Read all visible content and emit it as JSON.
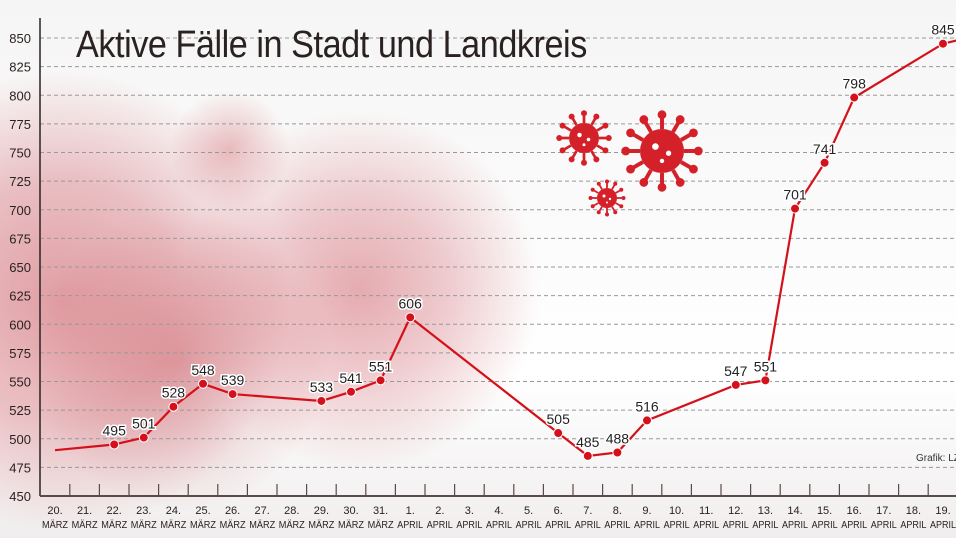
{
  "title": "Aktive Fälle in Stadt und Landkreis",
  "credit": "Grafik: LZ",
  "colors": {
    "line": "#d4111b",
    "axis": "#2a2220",
    "grid": "#999999",
    "virus": "#d42029"
  },
  "decorations": [
    "virus-background-image",
    "virus-icon-large",
    "virus-icon-medium",
    "virus-icon-small"
  ],
  "chart_data": {
    "type": "line",
    "title": "Aktive Fälle in Stadt und Landkreis",
    "xlabel": "",
    "ylabel": "",
    "ylim": [
      450,
      850
    ],
    "yticks": [
      450,
      475,
      500,
      525,
      550,
      575,
      600,
      625,
      650,
      675,
      700,
      725,
      750,
      775,
      800,
      825,
      850
    ],
    "grid": "horizontal dashed",
    "categories": [
      {
        "day": "20.",
        "month": "MÄRZ"
      },
      {
        "day": "21.",
        "month": "MÄRZ"
      },
      {
        "day": "22.",
        "month": "MÄRZ"
      },
      {
        "day": "23.",
        "month": "MÄRZ"
      },
      {
        "day": "24.",
        "month": "MÄRZ"
      },
      {
        "day": "25.",
        "month": "MÄRZ"
      },
      {
        "day": "26.",
        "month": "MÄRZ"
      },
      {
        "day": "27.",
        "month": "MÄRZ"
      },
      {
        "day": "28.",
        "month": "MÄRZ"
      },
      {
        "day": "29.",
        "month": "MÄRZ"
      },
      {
        "day": "30.",
        "month": "MÄRZ"
      },
      {
        "day": "31.",
        "month": "MÄRZ"
      },
      {
        "day": "1.",
        "month": "APRIL"
      },
      {
        "day": "2.",
        "month": "APRIL"
      },
      {
        "day": "3.",
        "month": "APRIL"
      },
      {
        "day": "4.",
        "month": "APRIL"
      },
      {
        "day": "5.",
        "month": "APRIL"
      },
      {
        "day": "6.",
        "month": "APRIL"
      },
      {
        "day": "7.",
        "month": "APRIL"
      },
      {
        "day": "8.",
        "month": "APRIL"
      },
      {
        "day": "9.",
        "month": "APRIL"
      },
      {
        "day": "10.",
        "month": "APRIL"
      },
      {
        "day": "11.",
        "month": "APRIL"
      },
      {
        "day": "12.",
        "month": "APRIL"
      },
      {
        "day": "13.",
        "month": "APRIL"
      },
      {
        "day": "14.",
        "month": "APRIL"
      },
      {
        "day": "15.",
        "month": "APRIL"
      },
      {
        "day": "16.",
        "month": "APRIL"
      },
      {
        "day": "17.",
        "month": "APRIL"
      },
      {
        "day": "18.",
        "month": "APRIL"
      },
      {
        "day": "19.",
        "month": "APRIL"
      }
    ],
    "series": [
      {
        "points": [
          {
            "x": 0,
            "y": 490,
            "label": null
          },
          {
            "x": 2,
            "y": 495,
            "label": "495"
          },
          {
            "x": 3,
            "y": 501,
            "label": "501"
          },
          {
            "x": 4,
            "y": 528,
            "label": "528"
          },
          {
            "x": 5,
            "y": 548,
            "label": "548"
          },
          {
            "x": 6,
            "y": 539,
            "label": "539"
          },
          {
            "x": 9,
            "y": 533,
            "label": "533"
          },
          {
            "x": 10,
            "y": 541,
            "label": "541"
          },
          {
            "x": 11,
            "y": 551,
            "label": "551"
          },
          {
            "x": 12,
            "y": 606,
            "label": "606"
          },
          {
            "x": 17,
            "y": 505,
            "label": "505"
          },
          {
            "x": 18,
            "y": 485,
            "label": "485"
          },
          {
            "x": 19,
            "y": 488,
            "label": "488"
          },
          {
            "x": 20,
            "y": 516,
            "label": "516"
          },
          {
            "x": 23,
            "y": 547,
            "label": "547"
          },
          {
            "x": 24,
            "y": 551,
            "label": "551"
          },
          {
            "x": 25,
            "y": 701,
            "label": "701"
          },
          {
            "x": 26,
            "y": 741,
            "label": "741"
          },
          {
            "x": 27,
            "y": 798,
            "label": "798"
          },
          {
            "x": 30,
            "y": 845,
            "label": "845"
          }
        ]
      }
    ]
  }
}
